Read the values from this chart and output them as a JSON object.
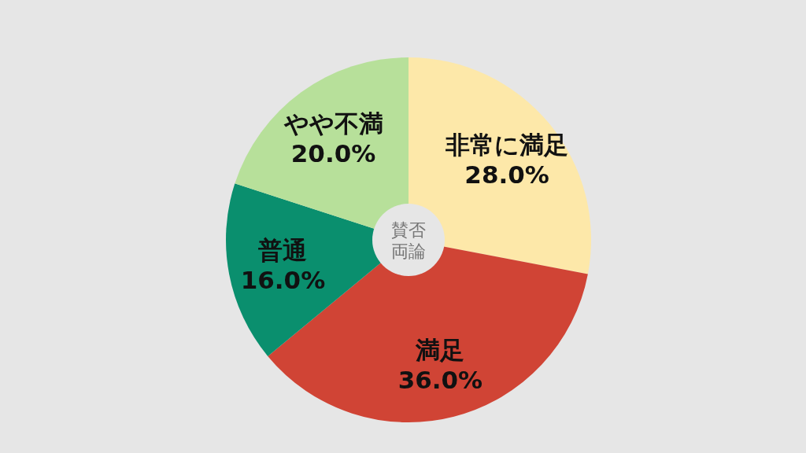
{
  "chart_data": {
    "type": "pie",
    "title": "賛否両論",
    "categories": [
      "非常に満足",
      "満足",
      "普通",
      "やや不満"
    ],
    "values": [
      28.0,
      36.0,
      16.0,
      20.0
    ],
    "colors": [
      "#fde8a9",
      "#d04435",
      "#0a8f6e",
      "#b7e09a"
    ],
    "value_labels": [
      "28.0%",
      "36.0%",
      "16.0%",
      "20.0%"
    ]
  }
}
